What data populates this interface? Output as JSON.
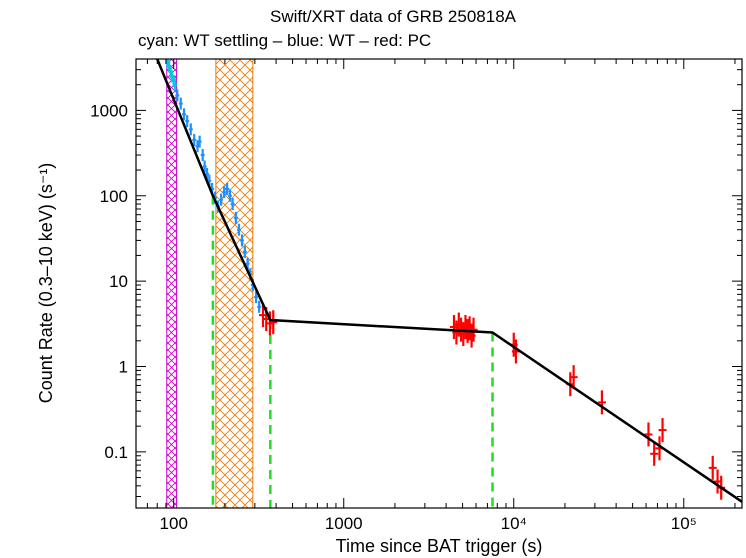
{
  "chart_data": {
    "type": "scatter",
    "title": "Swift/XRT data of GRB 250818A",
    "subtitle": "cyan: WT settling – blue: WT – red: PC",
    "xlabel": "Time since BAT trigger (s)",
    "ylabel": "Count Rate (0.3–10 keV) (s⁻¹)",
    "xscale": "log",
    "yscale": "log",
    "xlim": [
      60,
      220000
    ],
    "ylim": [
      0.022,
      4000
    ],
    "x_ticks": [
      {
        "value": 100,
        "label": "100"
      },
      {
        "value": 1000,
        "label": "1000"
      },
      {
        "value": 10000,
        "label": "10⁴"
      },
      {
        "value": 100000,
        "label": "10⁵"
      }
    ],
    "y_ticks": [
      {
        "value": 1000,
        "label": "1000"
      },
      {
        "value": 100,
        "label": "100"
      },
      {
        "value": 10,
        "label": "10"
      },
      {
        "value": 1,
        "label": "1"
      },
      {
        "value": 0.1,
        "label": "0.1"
      }
    ],
    "colors": {
      "wt_settling": "#00c8e8",
      "wt": "#1e90ff",
      "pc": "#ff0000",
      "model": "#000000",
      "break_lines": "#22dd22",
      "flare_magenta": "#cc00cc",
      "flare_orange": "#ee7700"
    },
    "model": {
      "breaks": [
        170,
        370,
        7500
      ],
      "points": [
        {
          "t": 80,
          "rate": 4000
        },
        {
          "t": 170,
          "rate": 100
        },
        {
          "t": 370,
          "rate": 3.5
        },
        {
          "t": 7500,
          "rate": 2.5
        },
        {
          "t": 220000,
          "rate": 0.026
        }
      ]
    },
    "shaded_intervals": [
      {
        "name": "flare-1",
        "color": "magenta",
        "x_start": 91,
        "x_end": 104
      },
      {
        "name": "flare-2",
        "color": "orange",
        "x_start": 177,
        "x_end": 292
      }
    ],
    "series": [
      {
        "name": "WT settling",
        "color": "cyan",
        "points": [
          {
            "t": 92,
            "rate": 3700
          },
          {
            "t": 94,
            "rate": 3300
          },
          {
            "t": 96,
            "rate": 2800
          },
          {
            "t": 98,
            "rate": 2500
          },
          {
            "t": 100,
            "rate": 2200
          },
          {
            "t": 102,
            "rate": 2000
          }
        ]
      },
      {
        "name": "WT",
        "color": "blue",
        "points": [
          {
            "t": 105,
            "rate": 1500
          },
          {
            "t": 110,
            "rate": 1200
          },
          {
            "t": 115,
            "rate": 900
          },
          {
            "t": 120,
            "rate": 750
          },
          {
            "t": 126,
            "rate": 600
          },
          {
            "t": 132,
            "rate": 450
          },
          {
            "t": 138,
            "rate": 380
          },
          {
            "t": 142,
            "rate": 430
          },
          {
            "t": 148,
            "rate": 300
          },
          {
            "t": 152,
            "rate": 220
          },
          {
            "t": 157,
            "rate": 180
          },
          {
            "t": 162,
            "rate": 150
          },
          {
            "t": 168,
            "rate": 120
          },
          {
            "t": 175,
            "rate": 95
          },
          {
            "t": 182,
            "rate": 75
          },
          {
            "t": 190,
            "rate": 90
          },
          {
            "t": 198,
            "rate": 110
          },
          {
            "t": 206,
            "rate": 120
          },
          {
            "t": 214,
            "rate": 100
          },
          {
            "t": 222,
            "rate": 80
          },
          {
            "t": 232,
            "rate": 55
          },
          {
            "t": 242,
            "rate": 40
          },
          {
            "t": 252,
            "rate": 30
          },
          {
            "t": 262,
            "rate": 22
          },
          {
            "t": 272,
            "rate": 16
          },
          {
            "t": 282,
            "rate": 12
          },
          {
            "t": 292,
            "rate": 9
          },
          {
            "t": 305,
            "rate": 6.5
          },
          {
            "t": 318,
            "rate": 5
          }
        ]
      },
      {
        "name": "PC",
        "color": "red",
        "points": [
          {
            "t": 335,
            "rate": 4.0
          },
          {
            "t": 350,
            "rate": 3.6
          },
          {
            "t": 368,
            "rate": 3.2
          },
          {
            "t": 385,
            "rate": 3.3
          },
          {
            "t": 4450,
            "rate": 2.9
          },
          {
            "t": 4600,
            "rate": 2.5
          },
          {
            "t": 4750,
            "rate": 3.1
          },
          {
            "t": 4900,
            "rate": 2.7
          },
          {
            "t": 5050,
            "rate": 2.4
          },
          {
            "t": 5200,
            "rate": 2.9
          },
          {
            "t": 5350,
            "rate": 2.6
          },
          {
            "t": 5500,
            "rate": 2.8
          },
          {
            "t": 5650,
            "rate": 2.3
          },
          {
            "t": 5800,
            "rate": 2.7
          },
          {
            "t": 10000,
            "rate": 1.8
          },
          {
            "t": 10300,
            "rate": 1.5
          },
          {
            "t": 21500,
            "rate": 0.62
          },
          {
            "t": 22500,
            "rate": 0.75
          },
          {
            "t": 33000,
            "rate": 0.38
          },
          {
            "t": 62000,
            "rate": 0.16
          },
          {
            "t": 67000,
            "rate": 0.095
          },
          {
            "t": 72000,
            "rate": 0.11
          },
          {
            "t": 75000,
            "rate": 0.18
          },
          {
            "t": 148000,
            "rate": 0.065
          },
          {
            "t": 158000,
            "rate": 0.045
          },
          {
            "t": 166000,
            "rate": 0.038
          }
        ]
      }
    ]
  }
}
